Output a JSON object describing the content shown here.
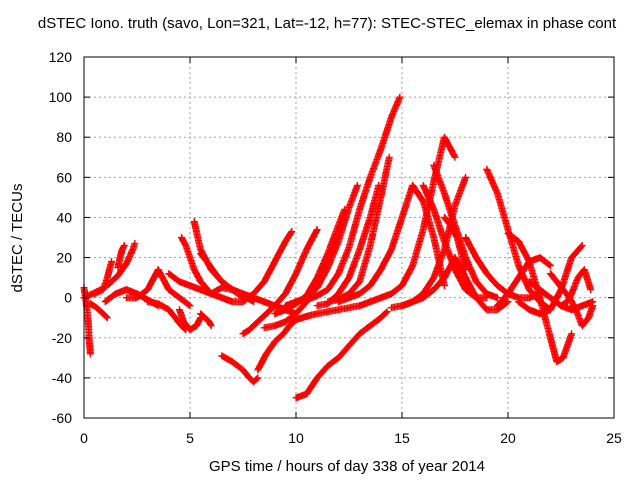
{
  "chart_data": {
    "type": "scatter",
    "title": "dSTEC Iono. truth (savo, Lon=321, Lat=-12, h=77): STEC-STEC_elemax in phase cont",
    "xlabel": "GPS time / hours of day 338 of year 2014",
    "ylabel": "dSTEC  / TECUs",
    "xlim": [
      0,
      25
    ],
    "ylim": [
      -60,
      120
    ],
    "x_ticks": [
      "0",
      "5",
      "10",
      "15",
      "20",
      "25"
    ],
    "y_ticks": [
      "-60",
      "-40",
      "-20",
      "0",
      "20",
      "40",
      "60",
      "80",
      "100",
      "120"
    ],
    "grid": true,
    "marker": "plus",
    "color": "#ff0000",
    "series": [
      {
        "x": [
          0.0,
          0.1,
          0.2,
          0.25,
          0.3
        ],
        "y": [
          5,
          -2,
          -12,
          -22,
          -28
        ]
      },
      {
        "x": [
          0.0,
          0.4,
          0.8,
          1.2,
          1.6,
          2.0,
          2.3,
          2.4
        ],
        "y": [
          0,
          2,
          4,
          7,
          11,
          17,
          24,
          27
        ]
      },
      {
        "x": [
          0.3,
          0.6,
          0.9,
          1.1
        ],
        "y": [
          -3,
          -5,
          -8,
          -10
        ]
      },
      {
        "x": [
          0.5,
          0.9,
          1.1,
          1.3
        ],
        "y": [
          2,
          4,
          10,
          18
        ]
      },
      {
        "x": [
          1.0,
          1.5,
          2.0,
          2.5,
          3.0,
          3.5
        ],
        "y": [
          -2,
          2,
          4,
          2,
          -1,
          -4
        ]
      },
      {
        "x": [
          1.6,
          1.7,
          1.8,
          1.9
        ],
        "y": [
          15,
          20,
          24,
          26
        ]
      },
      {
        "x": [
          2.0,
          2.5,
          3.0,
          3.3,
          3.5,
          3.8,
          4.0,
          4.5,
          5.0
        ],
        "y": [
          0,
          0,
          4,
          10,
          14,
          8,
          4,
          0,
          -4
        ]
      },
      {
        "x": [
          3.0,
          3.5,
          4.0,
          4.3,
          4.6,
          4.8
        ],
        "y": [
          -2,
          -3,
          -6,
          -10,
          -14,
          -16
        ]
      },
      {
        "x": [
          4.0,
          4.5,
          5.0,
          5.5,
          6.0,
          6.5,
          7.0,
          7.5
        ],
        "y": [
          12,
          8,
          6,
          4,
          2,
          0,
          -2,
          -2
        ]
      },
      {
        "x": [
          4.5,
          4.7,
          5.0,
          5.3,
          5.5
        ],
        "y": [
          -6,
          -12,
          -16,
          -14,
          -10
        ]
      },
      {
        "x": [
          4.6,
          4.8,
          5.0,
          5.2,
          5.5,
          6.0
        ],
        "y": [
          30,
          26,
          20,
          14,
          8,
          2
        ]
      },
      {
        "x": [
          5.2,
          5.3,
          5.5,
          6.0,
          6.5,
          7.0,
          7.5
        ],
        "y": [
          38,
          33,
          24,
          14,
          8,
          4,
          0
        ]
      },
      {
        "x": [
          5.5,
          5.8,
          6.2,
          6.5,
          7.0,
          7.5,
          8.0
        ],
        "y": [
          22,
          18,
          12,
          8,
          4,
          1,
          -2
        ]
      },
      {
        "x": [
          5.5,
          5.7,
          5.9,
          6.0
        ],
        "y": [
          -8,
          -10,
          -12,
          -14
        ]
      },
      {
        "x": [
          6.0,
          6.5,
          7.0,
          7.5,
          8.0,
          8.5,
          9.0,
          9.5,
          10.0
        ],
        "y": [
          2,
          5,
          4,
          2,
          0,
          -2,
          -4,
          -6,
          -8
        ]
      },
      {
        "x": [
          6.5,
          7.0,
          7.5,
          7.8,
          8.0,
          8.2
        ],
        "y": [
          -29,
          -32,
          -36,
          -40,
          -42,
          -40
        ]
      },
      {
        "x": [
          7.5,
          8.0,
          8.5,
          9.0,
          9.5,
          9.8
        ],
        "y": [
          -2,
          2,
          8,
          18,
          28,
          33
        ]
      },
      {
        "x": [
          7.5,
          7.8,
          8.2,
          8.6,
          9.0,
          9.5,
          10.0,
          10.5,
          11.0
        ],
        "y": [
          -18,
          -16,
          -12,
          -8,
          -4,
          2,
          12,
          24,
          34
        ]
      },
      {
        "x": [
          8.2,
          8.6,
          9.0,
          9.4,
          9.7,
          10.0,
          10.3,
          10.6,
          11.0,
          11.5,
          12.0,
          12.5,
          13.0
        ],
        "y": [
          -36,
          -28,
          -22,
          -18,
          -14,
          -11,
          -10,
          -9,
          -8,
          -7,
          -6,
          -5,
          -4
        ]
      },
      {
        "x": [
          8.5,
          9.0,
          9.5,
          10.0,
          10.5,
          11.0,
          11.5,
          12.0
        ],
        "y": [
          -15,
          -14,
          -12,
          -8,
          -2,
          8,
          20,
          32
        ]
      },
      {
        "x": [
          9.0,
          9.5,
          10.0,
          10.5,
          11.0,
          11.5,
          12.0,
          12.3
        ],
        "y": [
          -8,
          -6,
          -3,
          1,
          10,
          22,
          36,
          44
        ]
      },
      {
        "x": [
          9.5,
          10.0,
          10.5,
          11.0,
          11.5,
          12.0,
          12.5,
          12.9
        ],
        "y": [
          -4,
          -2,
          0,
          5,
          15,
          28,
          45,
          56
        ]
      },
      {
        "x": [
          10.0,
          10.5,
          11.0,
          11.5,
          12.0,
          12.5,
          13.0,
          13.5,
          14.0,
          14.3
        ],
        "y": [
          -50,
          -48,
          -40,
          -34,
          -30,
          -24,
          -18,
          -14,
          -10,
          -7
        ]
      },
      {
        "x": [
          10.0,
          10.5,
          11.0,
          11.5,
          12.0,
          12.5,
          13.0,
          13.5,
          14.0,
          14.5,
          14.9
        ],
        "y": [
          -2,
          -1,
          1,
          4,
          12,
          25,
          44,
          60,
          74,
          90,
          100
        ]
      },
      {
        "x": [
          11.0,
          11.5,
          12.0,
          12.5,
          13.0,
          13.5,
          13.9
        ],
        "y": [
          -4,
          -3,
          2,
          10,
          24,
          40,
          56
        ]
      },
      {
        "x": [
          11.5,
          12.0,
          12.5,
          13.0,
          13.5,
          14.0,
          14.4
        ],
        "y": [
          -2,
          -1,
          2,
          8,
          26,
          50,
          70
        ]
      },
      {
        "x": [
          12.0,
          12.5,
          13.0,
          13.5,
          14.0,
          14.5,
          15.0,
          15.5,
          16.0,
          16.5,
          17.0
        ],
        "y": [
          -2,
          0,
          2,
          6,
          14,
          24,
          40,
          56,
          48,
          30,
          6
        ]
      },
      {
        "x": [
          13.0,
          13.5,
          14.0,
          14.5,
          15.0,
          15.5,
          16.0,
          16.5,
          17.0,
          17.5
        ],
        "y": [
          -4,
          -2,
          0,
          2,
          6,
          16,
          34,
          58,
          80,
          70
        ]
      },
      {
        "x": [
          14.5,
          15.0,
          15.5,
          16.0,
          16.5,
          17.0,
          17.5,
          18.0
        ],
        "y": [
          -5,
          -4,
          -2,
          2,
          10,
          24,
          46,
          60
        ]
      },
      {
        "x": [
          15.0,
          15.5,
          16.0,
          16.5,
          17.0,
          17.5
        ],
        "y": [
          -4,
          -2,
          0,
          4,
          10,
          20
        ]
      },
      {
        "x": [
          16.0,
          16.5,
          17.0,
          17.5,
          18.0,
          18.5,
          19.0
        ],
        "y": [
          56,
          44,
          28,
          14,
          4,
          0,
          0
        ]
      },
      {
        "x": [
          16.5,
          17.0,
          17.5,
          18.0,
          18.5,
          19.0,
          19.5
        ],
        "y": [
          66,
          52,
          36,
          20,
          8,
          2,
          0
        ]
      },
      {
        "x": [
          17.0,
          17.3,
          17.6,
          17.8,
          18.0
        ],
        "y": [
          40,
          36,
          30,
          22,
          14
        ]
      },
      {
        "x": [
          17.5,
          18.0,
          18.5,
          19.0,
          19.5,
          20.0
        ],
        "y": [
          20,
          10,
          0,
          -6,
          -6,
          -2
        ]
      },
      {
        "x": [
          18.0,
          18.5,
          19.0,
          19.5,
          20.0,
          20.5,
          21.0,
          21.5
        ],
        "y": [
          30,
          20,
          12,
          6,
          2,
          0,
          0,
          2
        ]
      },
      {
        "x": [
          19.0,
          19.5,
          20.0,
          20.5,
          21.0,
          21.5,
          22.0
        ],
        "y": [
          64,
          52,
          34,
          16,
          4,
          -2,
          -6
        ]
      },
      {
        "x": [
          19.5,
          20.0,
          20.5,
          21.0,
          21.5,
          22.0
        ],
        "y": [
          -4,
          2,
          10,
          18,
          20,
          16
        ]
      },
      {
        "x": [
          20.0,
          20.5,
          21.0,
          21.5,
          22.0,
          22.3,
          22.6,
          23.0
        ],
        "y": [
          32,
          28,
          18,
          0,
          -20,
          -32,
          -30,
          -18
        ]
      },
      {
        "x": [
          20.5,
          21.0,
          21.5,
          22.0,
          22.5,
          23.0,
          23.5
        ],
        "y": [
          -2,
          -6,
          -8,
          -6,
          4,
          20,
          26
        ]
      },
      {
        "x": [
          21.0,
          21.5,
          22.0,
          22.5,
          23.0,
          23.5,
          24.0
        ],
        "y": [
          8,
          4,
          0,
          -4,
          -6,
          -4,
          -2
        ]
      },
      {
        "x": [
          22.0,
          22.3,
          22.6,
          22.9,
          23.2,
          23.5,
          23.8,
          24.0
        ],
        "y": [
          12,
          8,
          4,
          0,
          -6,
          -14,
          -10,
          -4
        ]
      },
      {
        "x": [
          22.5,
          22.8,
          23.0,
          23.3,
          23.6,
          23.9
        ],
        "y": [
          -4,
          -2,
          2,
          10,
          14,
          4
        ]
      }
    ]
  }
}
